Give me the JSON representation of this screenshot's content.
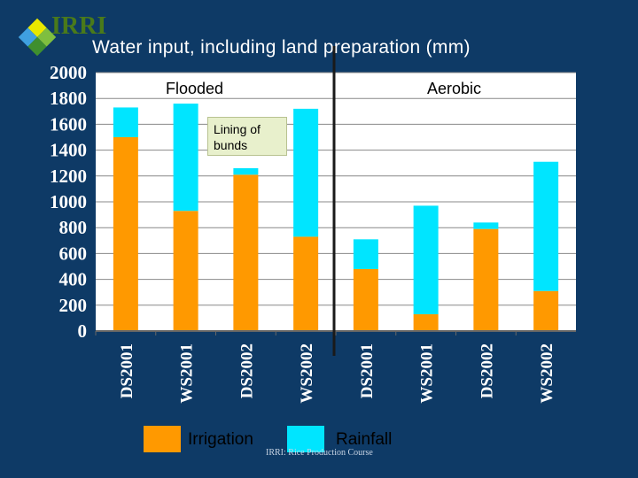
{
  "logo_text": "IRRI",
  "title": "Water input, including land preparation (mm)",
  "colors": {
    "irrigation": "#ff9900",
    "rainfall": "#00e5ff",
    "plot_bg": "#ffffff",
    "background": "#0e3a66"
  },
  "annotation": "Lining of bunds",
  "footer": "IRRI: Rice Production Course",
  "chart_data": {
    "type": "bar",
    "stacked": true,
    "categories": [
      "DS2001",
      "WS2001",
      "DS2002",
      "WS2002",
      "DS2001",
      "WS2001",
      "DS2002",
      "WS2002"
    ],
    "groups": [
      {
        "label": "Flooded",
        "categories": [
          0,
          1,
          2,
          3
        ]
      },
      {
        "label": "Aerobic",
        "categories": [
          4,
          5,
          6,
          7
        ]
      }
    ],
    "series": [
      {
        "name": "Irrigation",
        "values": [
          1500,
          930,
          1210,
          730,
          480,
          130,
          790,
          310
        ]
      },
      {
        "name": "Rainfall",
        "values": [
          230,
          830,
          50,
          990,
          230,
          840,
          50,
          1000
        ]
      }
    ],
    "title": "Water input, including land preparation (mm)",
    "ylim": [
      0,
      2000
    ],
    "yticks": [
      0,
      200,
      400,
      600,
      800,
      1000,
      1200,
      1400,
      1600,
      1800,
      2000
    ],
    "grid": true,
    "legend": "bottom"
  }
}
